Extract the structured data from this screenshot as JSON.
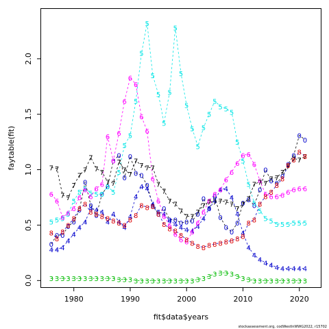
{
  "chart_data": {
    "type": "line",
    "xlabel": "fit$data$years",
    "ylabel": "faytable(fit)",
    "xlim": [
      1974.2,
      2023.8
    ],
    "ylim": [
      -0.06,
      2.45
    ],
    "xticks": [
      1980,
      1990,
      2000,
      2010,
      2020
    ],
    "yticks": [
      0.0,
      0.5,
      1.0,
      1.5,
      2.0
    ],
    "ytick_labels": [
      "0.0",
      "0.5",
      "1.0",
      "1.5",
      "2.0"
    ],
    "grid": false,
    "x": [
      1976,
      1977,
      1978,
      1979,
      1980,
      1981,
      1982,
      1983,
      1984,
      1985,
      1986,
      1987,
      1988,
      1989,
      1990,
      1991,
      1992,
      1993,
      1994,
      1995,
      1996,
      1997,
      1998,
      1999,
      2000,
      2001,
      2002,
      2003,
      2004,
      2005,
      2006,
      2007,
      2008,
      2009,
      2010,
      2011,
      2012,
      2013,
      2014,
      2015,
      2016,
      2017,
      2018,
      2019,
      2020,
      2021
    ],
    "series": [
      {
        "name": "0",
        "color": "#0000CC",
        "line_color": "#000000",
        "values": [
          0.33,
          0.41,
          0.41,
          0.49,
          0.53,
          0.64,
          0.89,
          0.68,
          0.59,
          0.78,
          0.85,
          1.08,
          1.13,
          0.93,
          1.12,
          0.97,
          0.95,
          0.86,
          0.68,
          0.6,
          0.65,
          0.55,
          0.55,
          0.52,
          0.53,
          0.54,
          0.6,
          0.74,
          0.65,
          0.76,
          0.57,
          0.48,
          0.44,
          0.52,
          0.7,
          0.73,
          0.68,
          0.82,
          1.0,
          0.9,
          0.88,
          0.94,
          1.05,
          1.13,
          1.31,
          1.27
        ]
      },
      {
        "name": "4",
        "color": "#0000CC",
        "line_color": "#0000CC",
        "values": [
          0.28,
          0.28,
          0.3,
          0.36,
          0.42,
          0.48,
          0.53,
          0.65,
          0.64,
          0.62,
          0.53,
          0.6,
          0.53,
          0.48,
          0.58,
          0.76,
          0.85,
          0.83,
          0.69,
          0.62,
          0.6,
          0.54,
          0.51,
          0.48,
          0.46,
          0.45,
          0.49,
          0.56,
          0.65,
          0.72,
          0.82,
          0.83,
          0.75,
          0.6,
          0.43,
          0.3,
          0.23,
          0.19,
          0.16,
          0.14,
          0.12,
          0.11,
          0.11,
          0.11,
          0.11,
          0.11
        ]
      },
      {
        "name": "5",
        "color": "#00E5E5",
        "line_color": "#00E5E5",
        "values": [
          0.53,
          0.55,
          0.56,
          0.6,
          0.72,
          0.8,
          0.83,
          0.79,
          0.78,
          0.78,
          0.85,
          0.8,
          0.98,
          1.22,
          1.31,
          1.62,
          2.05,
          2.32,
          1.85,
          1.68,
          1.42,
          1.7,
          2.28,
          1.87,
          1.58,
          1.37,
          1.21,
          1.38,
          1.5,
          1.62,
          1.57,
          1.55,
          1.52,
          1.25,
          1.08,
          0.87,
          0.7,
          0.63,
          0.56,
          0.54,
          0.51,
          0.51,
          0.51,
          0.52,
          0.52,
          0.52
        ]
      },
      {
        "name": "6",
        "color": "#FF00FF",
        "line_color": "#FF00FF",
        "values": [
          0.78,
          0.72,
          0.57,
          0.61,
          0.65,
          0.75,
          0.82,
          0.76,
          0.83,
          0.87,
          1.3,
          1.08,
          1.33,
          1.62,
          1.83,
          1.77,
          1.48,
          1.35,
          0.92,
          0.72,
          0.58,
          0.5,
          0.42,
          0.37,
          0.35,
          0.44,
          0.52,
          0.62,
          0.72,
          0.78,
          0.82,
          0.91,
          0.98,
          1.06,
          1.13,
          1.14,
          1.05,
          0.9,
          0.78,
          0.76,
          0.76,
          0.77,
          0.8,
          0.82,
          0.83,
          0.83
        ]
      },
      {
        "name": "7",
        "color": "#000000",
        "line_color": "#000000",
        "values": [
          1.02,
          1.01,
          0.77,
          0.75,
          0.86,
          0.95,
          1.0,
          1.11,
          1.01,
          0.98,
          0.89,
          0.88,
          1.07,
          1.0,
          0.96,
          1.08,
          1.04,
          1.02,
          1.02,
          0.87,
          0.81,
          0.72,
          0.69,
          0.63,
          0.58,
          0.58,
          0.62,
          0.68,
          0.71,
          0.71,
          0.72,
          0.71,
          0.69,
          0.65,
          0.69,
          0.74,
          0.87,
          0.89,
          0.88,
          0.92,
          0.93,
          0.98,
          1.03,
          1.1,
          1.09,
          1.12
        ]
      },
      {
        "name": "8",
        "color": "#DD0000",
        "line_color": "#0000CC",
        "values": [
          0.43,
          0.38,
          0.44,
          0.5,
          0.56,
          0.65,
          0.69,
          0.62,
          0.6,
          0.58,
          0.56,
          0.54,
          0.52,
          0.5,
          0.55,
          0.59,
          0.68,
          0.66,
          0.67,
          0.6,
          0.51,
          0.47,
          0.45,
          0.41,
          0.37,
          0.34,
          0.31,
          0.3,
          0.32,
          0.33,
          0.34,
          0.35,
          0.36,
          0.38,
          0.4,
          0.52,
          0.55,
          0.69,
          0.76,
          0.8,
          0.86,
          0.92,
          1.04,
          1.09,
          1.16,
          1.12
        ]
      },
      {
        "name": "3",
        "color": "#00BB00",
        "line_color": "#00BB00",
        "values": [
          0.02,
          0.02,
          0.02,
          0.02,
          0.02,
          0.02,
          0.02,
          0.02,
          0.02,
          0.02,
          0.02,
          0.02,
          0.01,
          0.01,
          0.01,
          0.0,
          0.0,
          0.0,
          0.0,
          0.0,
          0.0,
          0.0,
          0.0,
          0.0,
          0.0,
          0.0,
          0.01,
          0.02,
          0.04,
          0.06,
          0.07,
          0.07,
          0.06,
          0.04,
          0.02,
          0.01,
          0.0,
          0.0,
          0.0,
          0.0,
          0.0,
          0.0,
          0.0,
          0.0,
          0.0,
          0.0
        ]
      }
    ]
  },
  "footer": "stockassessment.org, codWestInWWG2022, r15702"
}
